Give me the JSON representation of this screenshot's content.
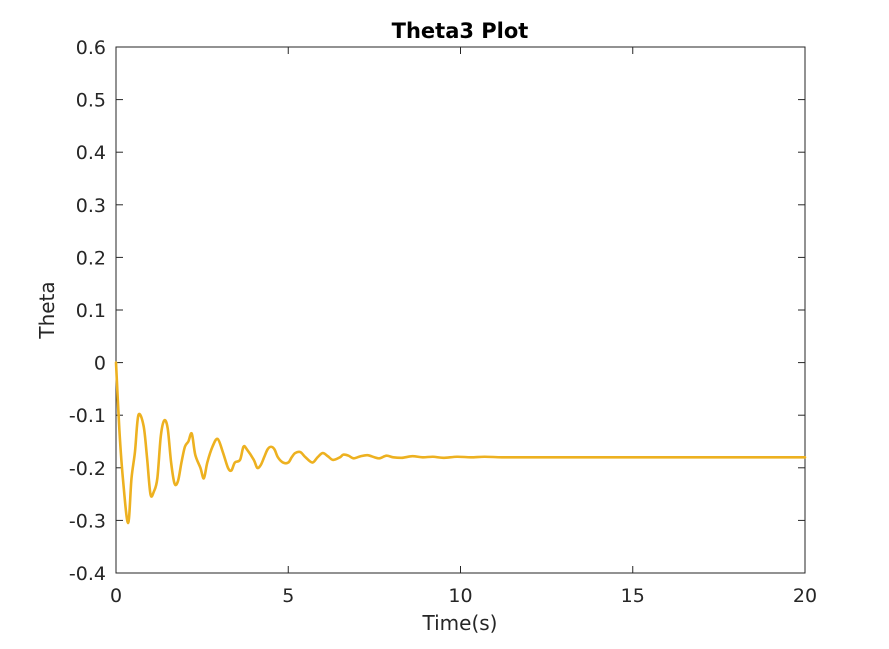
{
  "chart_data": {
    "type": "line",
    "title": "Theta3 Plot",
    "xlabel": "Time(s)",
    "ylabel": "Theta",
    "xlim": [
      0,
      20
    ],
    "ylim": [
      -0.4,
      0.6
    ],
    "xticks": [
      0,
      5,
      10,
      15,
      20
    ],
    "yticks": [
      0.6,
      0.5,
      0.4,
      0.3,
      0.2,
      0.1,
      0,
      -0.1,
      -0.2,
      -0.3,
      -0.4
    ],
    "grid": false,
    "line_color": "#EDB120",
    "series": [
      {
        "x": [
          0,
          0.1,
          0.2,
          0.35,
          0.45,
          0.55,
          0.65,
          0.8,
          0.9,
          1.0,
          1.1,
          1.2,
          1.3,
          1.4,
          1.5,
          1.6,
          1.7,
          1.8,
          1.9,
          2.0,
          2.1,
          2.2,
          2.3,
          2.45,
          2.55,
          2.65,
          2.8,
          2.95,
          3.1,
          3.25,
          3.35,
          3.45,
          3.6,
          3.7,
          3.8,
          4.0,
          4.1,
          4.2,
          4.3,
          4.4,
          4.5,
          4.6,
          4.7,
          4.85,
          5.0,
          5.1,
          5.2,
          5.35,
          5.5,
          5.7,
          5.85,
          6.0,
          6.15,
          6.3,
          6.5,
          6.6,
          6.75,
          6.9,
          7.1,
          7.3,
          7.5,
          7.65,
          7.85,
          8.05,
          8.3,
          8.6,
          8.9,
          9.2,
          9.5,
          9.9,
          10.3,
          10.7,
          11.2,
          11.8,
          12.5,
          13.5,
          15.0,
          17.0,
          20.0
        ],
        "y": [
          0.0,
          -0.13,
          -0.22,
          -0.305,
          -0.22,
          -0.17,
          -0.1,
          -0.12,
          -0.18,
          -0.25,
          -0.245,
          -0.22,
          -0.14,
          -0.11,
          -0.125,
          -0.19,
          -0.23,
          -0.225,
          -0.19,
          -0.16,
          -0.15,
          -0.135,
          -0.175,
          -0.2,
          -0.22,
          -0.19,
          -0.16,
          -0.145,
          -0.17,
          -0.2,
          -0.205,
          -0.19,
          -0.185,
          -0.16,
          -0.165,
          -0.185,
          -0.2,
          -0.195,
          -0.18,
          -0.165,
          -0.16,
          -0.165,
          -0.18,
          -0.19,
          -0.19,
          -0.18,
          -0.172,
          -0.17,
          -0.18,
          -0.19,
          -0.18,
          -0.172,
          -0.178,
          -0.185,
          -0.18,
          -0.175,
          -0.177,
          -0.182,
          -0.178,
          -0.176,
          -0.18,
          -0.182,
          -0.177,
          -0.18,
          -0.181,
          -0.178,
          -0.18,
          -0.179,
          -0.181,
          -0.179,
          -0.18,
          -0.179,
          -0.18,
          -0.18,
          -0.18,
          -0.18,
          -0.18,
          -0.18,
          -0.18
        ]
      }
    ]
  }
}
